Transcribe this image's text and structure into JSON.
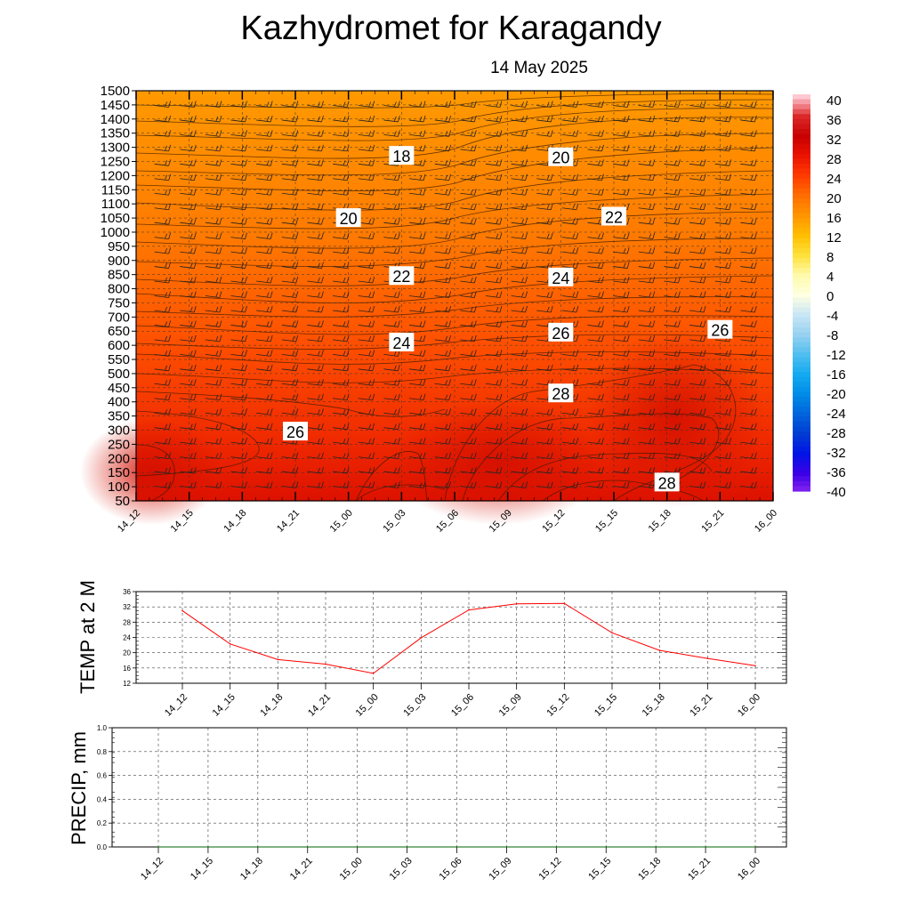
{
  "header": {
    "title": "Kazhydromet  for Karagandy",
    "date": "14 May 2025"
  },
  "chart_data": [
    {
      "type": "heatmap",
      "ylim": [
        50,
        1500
      ],
      "y_ticks": [
        "50",
        "100",
        "150",
        "200",
        "250",
        "300",
        "350",
        "400",
        "450",
        "500",
        "550",
        "600",
        "650",
        "700",
        "750",
        "800",
        "850",
        "900",
        "950",
        "1000",
        "1050",
        "1100",
        "1150",
        "1200",
        "1250",
        "1300",
        "1350",
        "1400",
        "1450",
        "1500"
      ],
      "x_ticks": [
        "14_12",
        "14_15",
        "14_18",
        "14_21",
        "15_00",
        "15_03",
        "15_06",
        "15_09",
        "15_12",
        "15_15",
        "15_18",
        "15_21",
        "16_00"
      ],
      "contour_labels": [
        {
          "text": "18",
          "time": "15_03",
          "height": 1270
        },
        {
          "text": "20",
          "time": "15_12",
          "height": 1265
        },
        {
          "text": "20",
          "time": "15_00",
          "height": 1050
        },
        {
          "text": "22",
          "time": "15_15",
          "height": 1055
        },
        {
          "text": "22",
          "time": "15_03",
          "height": 845
        },
        {
          "text": "24",
          "time": "15_12",
          "height": 840
        },
        {
          "text": "24",
          "time": "15_03",
          "height": 610
        },
        {
          "text": "26",
          "time": "15_12",
          "height": 645
        },
        {
          "text": "26",
          "time": "15_21",
          "height": 655
        },
        {
          "text": "28",
          "time": "15_12",
          "height": 430
        },
        {
          "text": "26",
          "time": "14_21",
          "height": 295
        },
        {
          "text": "28",
          "time": "15_18",
          "height": 115
        }
      ],
      "colorbar": {
        "labels": [
          "40",
          "36",
          "32",
          "28",
          "24",
          "20",
          "16",
          "12",
          "8",
          "4",
          "0",
          "-4",
          "-8",
          "-12",
          "-16",
          "-20",
          "-24",
          "-28",
          "-32",
          "-36",
          "-40"
        ]
      },
      "colors": {
        "warm_top": "#ff9a00",
        "warm_mid": "#ff5200",
        "warm_bottom": "#dd1100"
      }
    },
    {
      "type": "line",
      "ylabel": "TEMP at 2 M",
      "ylim": [
        12,
        36
      ],
      "y_ticks": [
        "12",
        "16",
        "20",
        "24",
        "28",
        "32",
        "36"
      ],
      "x_ticks": [
        "14_12",
        "14_15",
        "14_18",
        "14_21",
        "15_00",
        "15_03",
        "15_06",
        "15_09",
        "15_12",
        "15_15",
        "15_18",
        "15_21",
        "16_00"
      ],
      "series": [
        {
          "values": [
            31.0,
            22.3,
            18.2,
            17.0,
            14.6,
            23.9,
            31.2,
            32.8,
            32.9,
            25.2,
            20.6,
            18.5,
            16.6
          ],
          "color": "#ff0000"
        }
      ]
    },
    {
      "type": "line",
      "ylabel": "PRECIP, mm",
      "ylim": [
        0.0,
        1.0
      ],
      "y_ticks": [
        "0.0",
        "0.2",
        "0.4",
        "0.6",
        "0.8",
        "1.0"
      ],
      "x_ticks": [
        "14_12",
        "14_15",
        "14_18",
        "14_21",
        "15_00",
        "15_03",
        "15_06",
        "15_09",
        "15_12",
        "15_15",
        "15_18",
        "15_21",
        "16_00"
      ],
      "series": [
        {
          "values": [
            0,
            0,
            0,
            0,
            0,
            0,
            0,
            0,
            0,
            0,
            0,
            0,
            0
          ],
          "color": "#006400"
        }
      ]
    }
  ]
}
